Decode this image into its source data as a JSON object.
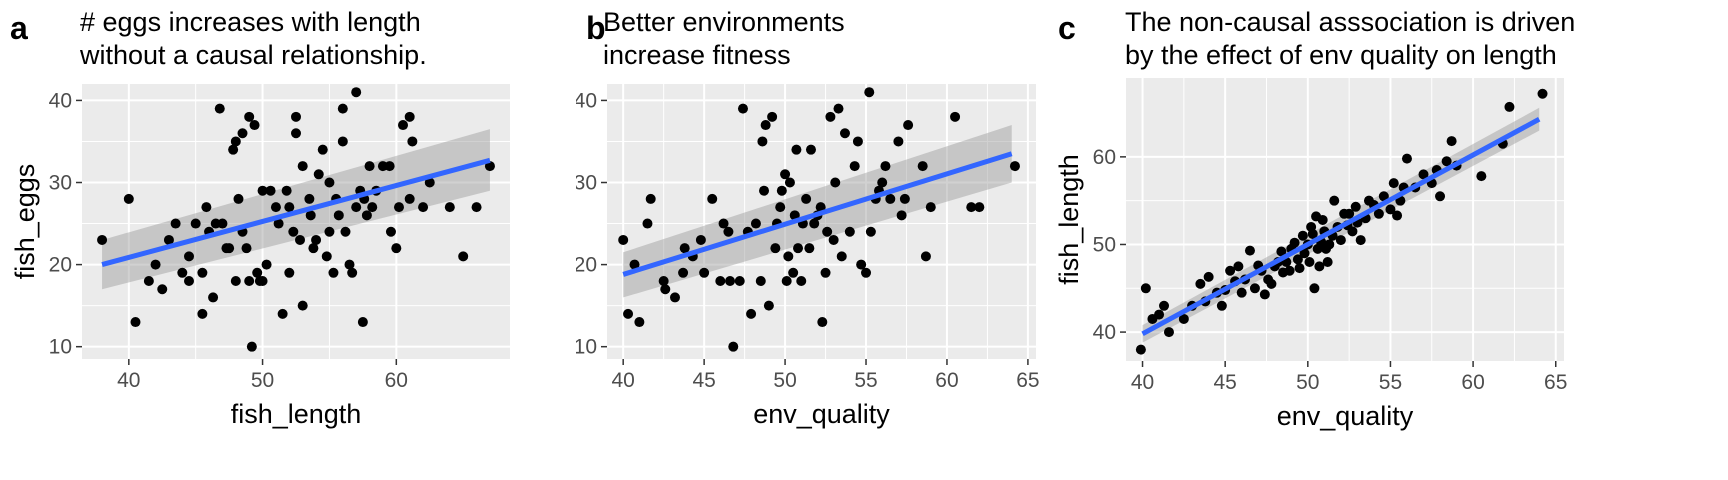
{
  "chart_data": [
    {
      "type": "scatter",
      "panel_label": "a",
      "title_lines": [
        "# eggs increases with length",
        "without a causal relationship."
      ],
      "xlabel": "fish_length",
      "ylabel": "fish_eggs",
      "xlim": [
        36.5,
        68.5
      ],
      "ylim": [
        8.5,
        42
      ],
      "xticks": [
        40,
        50,
        60
      ],
      "yticks": [
        10,
        20,
        30,
        40
      ],
      "grid": true,
      "fit": {
        "x": [
          38,
          67
        ],
        "y": [
          20,
          32.7
        ],
        "ci_lower": [
          17,
          29
        ],
        "ci_upper": [
          23,
          36.5
        ]
      },
      "colors": {
        "panel_bg": "#ebebeb",
        "points": "#000000",
        "fit_line": "#3366ff",
        "ribbon": "#999999"
      },
      "points": [
        [
          38,
          23
        ],
        [
          40,
          28
        ],
        [
          40.5,
          13
        ],
        [
          41.5,
          18
        ],
        [
          42,
          20
        ],
        [
          42.5,
          17
        ],
        [
          43,
          23
        ],
        [
          43.5,
          25
        ],
        [
          44,
          19
        ],
        [
          44.5,
          21
        ],
        [
          44.5,
          18
        ],
        [
          45,
          25
        ],
        [
          45.5,
          19
        ],
        [
          45.5,
          14
        ],
        [
          45.8,
          27
        ],
        [
          46,
          24
        ],
        [
          46.3,
          16
        ],
        [
          46.5,
          25
        ],
        [
          46.8,
          39
        ],
        [
          47,
          25
        ],
        [
          47.3,
          22
        ],
        [
          47.5,
          22
        ],
        [
          47.8,
          34
        ],
        [
          48,
          35
        ],
        [
          48,
          18
        ],
        [
          48.2,
          28
        ],
        [
          48.5,
          36
        ],
        [
          48.5,
          24
        ],
        [
          48.8,
          22
        ],
        [
          49,
          38
        ],
        [
          49,
          18
        ],
        [
          49.2,
          10
        ],
        [
          49.4,
          37
        ],
        [
          49.6,
          19
        ],
        [
          49.8,
          18
        ],
        [
          50,
          29
        ],
        [
          50,
          18
        ],
        [
          50.3,
          20
        ],
        [
          50.6,
          29
        ],
        [
          51,
          27
        ],
        [
          51.2,
          25
        ],
        [
          51.5,
          14
        ],
        [
          51.8,
          29
        ],
        [
          52,
          19
        ],
        [
          52,
          27
        ],
        [
          52.3,
          24
        ],
        [
          52.5,
          38
        ],
        [
          52.5,
          36
        ],
        [
          52.8,
          23
        ],
        [
          53,
          32
        ],
        [
          53,
          15
        ],
        [
          53.5,
          28
        ],
        [
          53.6,
          26
        ],
        [
          53.8,
          22
        ],
        [
          54,
          23
        ],
        [
          54.2,
          31
        ],
        [
          54.5,
          34
        ],
        [
          54.8,
          21
        ],
        [
          55,
          30
        ],
        [
          55,
          24
        ],
        [
          55.3,
          19
        ],
        [
          55.5,
          28
        ],
        [
          55.7,
          26
        ],
        [
          56,
          39
        ],
        [
          56,
          35
        ],
        [
          56.2,
          24
        ],
        [
          56.5,
          20
        ],
        [
          56.7,
          19
        ],
        [
          57,
          41
        ],
        [
          57,
          27
        ],
        [
          57.3,
          29
        ],
        [
          57.5,
          13
        ],
        [
          57.6,
          28
        ],
        [
          57.8,
          26
        ],
        [
          58,
          32
        ],
        [
          58.2,
          27
        ],
        [
          58.5,
          29
        ],
        [
          59,
          32
        ],
        [
          59.5,
          32
        ],
        [
          59.6,
          24
        ],
        [
          60,
          22
        ],
        [
          60.2,
          27
        ],
        [
          60.5,
          37
        ],
        [
          61,
          38
        ],
        [
          61.2,
          35
        ],
        [
          61,
          28
        ],
        [
          62,
          27
        ],
        [
          62.5,
          30
        ],
        [
          64,
          27
        ],
        [
          65,
          21
        ],
        [
          66,
          27
        ],
        [
          67,
          32
        ]
      ]
    },
    {
      "type": "scatter",
      "panel_label": "b",
      "title_lines": [
        "Better environments",
        "increase fitness"
      ],
      "xlabel": "env_quality",
      "ylabel": "fish_eggs",
      "xlim": [
        39,
        65.5
      ],
      "ylim": [
        8.5,
        42
      ],
      "xticks": [
        40,
        45,
        50,
        55,
        60,
        65
      ],
      "yticks": [
        10,
        20,
        30,
        40
      ],
      "grid": true,
      "fit": {
        "x": [
          40,
          64
        ],
        "y": [
          18.8,
          33.5
        ],
        "ci_lower": [
          16,
          30
        ],
        "ci_upper": [
          21.5,
          37
        ]
      },
      "colors": {
        "panel_bg": "#ebebeb",
        "points": "#000000",
        "fit_line": "#3366ff",
        "ribbon": "#999999"
      },
      "points": [
        [
          40,
          23
        ],
        [
          40.3,
          14
        ],
        [
          40.7,
          20
        ],
        [
          41,
          13
        ],
        [
          41.5,
          25
        ],
        [
          41.7,
          28
        ],
        [
          42.5,
          18
        ],
        [
          42.6,
          17
        ],
        [
          43.2,
          16
        ],
        [
          43.7,
          19
        ],
        [
          43.8,
          22
        ],
        [
          44.3,
          21
        ],
        [
          44.8,
          23
        ],
        [
          45,
          19
        ],
        [
          45.5,
          28
        ],
        [
          46,
          18
        ],
        [
          46.2,
          25
        ],
        [
          46.5,
          24
        ],
        [
          46.6,
          18
        ],
        [
          46.8,
          10
        ],
        [
          47.2,
          18
        ],
        [
          47.4,
          39
        ],
        [
          47.7,
          24
        ],
        [
          47.9,
          14
        ],
        [
          48.2,
          25
        ],
        [
          48.5,
          18
        ],
        [
          48.6,
          35
        ],
        [
          48.7,
          29
        ],
        [
          48.8,
          37
        ],
        [
          49,
          15
        ],
        [
          49.2,
          38
        ],
        [
          49.4,
          22
        ],
        [
          49.5,
          25
        ],
        [
          49.7,
          27
        ],
        [
          49.8,
          29
        ],
        [
          50,
          31
        ],
        [
          50.1,
          18
        ],
        [
          50.2,
          21
        ],
        [
          50.3,
          30
        ],
        [
          50.5,
          19
        ],
        [
          50.6,
          26
        ],
        [
          50.7,
          34
        ],
        [
          50.8,
          22
        ],
        [
          51,
          18
        ],
        [
          51.1,
          25
        ],
        [
          51.3,
          28
        ],
        [
          51.5,
          22
        ],
        [
          51.6,
          34
        ],
        [
          51.8,
          25
        ],
        [
          52,
          26
        ],
        [
          52.2,
          27
        ],
        [
          52.3,
          13
        ],
        [
          52.5,
          19
        ],
        [
          52.6,
          24
        ],
        [
          52.8,
          38
        ],
        [
          53,
          23
        ],
        [
          53.1,
          30
        ],
        [
          53.3,
          39
        ],
        [
          53.5,
          21
        ],
        [
          53.7,
          36
        ],
        [
          54,
          24
        ],
        [
          54.3,
          32
        ],
        [
          54.5,
          35
        ],
        [
          54.7,
          20
        ],
        [
          55,
          19
        ],
        [
          55.2,
          41
        ],
        [
          55.3,
          24
        ],
        [
          55.6,
          28
        ],
        [
          55.8,
          29
        ],
        [
          56,
          30
        ],
        [
          56.2,
          32
        ],
        [
          56.5,
          28
        ],
        [
          57,
          35
        ],
        [
          57.2,
          26
        ],
        [
          57.4,
          28
        ],
        [
          57.6,
          37
        ],
        [
          58.5,
          32
        ],
        [
          58.7,
          21
        ],
        [
          59,
          27
        ],
        [
          60.5,
          38
        ],
        [
          61.5,
          27
        ],
        [
          62,
          27
        ],
        [
          64.2,
          32
        ]
      ]
    },
    {
      "type": "scatter",
      "panel_label": "c",
      "title_lines": [
        "The non-causal asssociation is driven",
        "by the effect of env quality on length"
      ],
      "xlabel": "env_quality",
      "ylabel": "fish_length",
      "xlim": [
        39,
        65.5
      ],
      "ylim": [
        36.7,
        69
      ],
      "xticks": [
        40,
        45,
        50,
        55,
        60,
        65
      ],
      "yticks": [
        40,
        50,
        60
      ],
      "grid": true,
      "fit": {
        "x": [
          40,
          64
        ],
        "y": [
          39.8,
          64.3
        ],
        "ci_lower": [
          38.8,
          63.0
        ],
        "ci_upper": [
          40.8,
          65.6
        ]
      },
      "colors": {
        "panel_bg": "#ebebeb",
        "points": "#000000",
        "fit_line": "#3366ff",
        "ribbon": "#999999"
      },
      "points": [
        [
          39.9,
          38
        ],
        [
          40.2,
          45
        ],
        [
          40.6,
          41.5
        ],
        [
          41,
          42
        ],
        [
          41.3,
          43
        ],
        [
          41.6,
          40
        ],
        [
          42.5,
          41.5
        ],
        [
          43,
          43
        ],
        [
          43.5,
          45.5
        ],
        [
          43.8,
          43.5
        ],
        [
          44,
          46.3
        ],
        [
          44.5,
          44.5
        ],
        [
          44.8,
          43
        ],
        [
          45,
          44.8
        ],
        [
          45.3,
          47
        ],
        [
          45.6,
          45.8
        ],
        [
          45.8,
          47.5
        ],
        [
          46,
          44.5
        ],
        [
          46.2,
          46
        ],
        [
          46.5,
          49.3
        ],
        [
          46.8,
          45
        ],
        [
          47,
          47.6
        ],
        [
          47.2,
          47
        ],
        [
          47.4,
          44.3
        ],
        [
          47.6,
          46
        ],
        [
          47.8,
          45.5
        ],
        [
          48,
          47.5
        ],
        [
          48.2,
          48
        ],
        [
          48.4,
          49.2
        ],
        [
          48.5,
          46.8
        ],
        [
          48.7,
          48
        ],
        [
          48.9,
          47
        ],
        [
          49,
          49.5
        ],
        [
          49.2,
          50.2
        ],
        [
          49.4,
          48.3
        ],
        [
          49.5,
          47.3
        ],
        [
          49.7,
          51
        ],
        [
          49.8,
          49
        ],
        [
          50,
          50
        ],
        [
          50.1,
          48
        ],
        [
          50.2,
          52
        ],
        [
          50.3,
          51.2
        ],
        [
          50.4,
          45
        ],
        [
          50.5,
          53.2
        ],
        [
          50.6,
          49.5
        ],
        [
          50.7,
          47.5
        ],
        [
          50.8,
          50.3
        ],
        [
          50.9,
          52.8
        ],
        [
          51,
          51.5
        ],
        [
          51.1,
          49.5
        ],
        [
          51.2,
          48
        ],
        [
          51.3,
          50
        ],
        [
          51.5,
          51
        ],
        [
          51.6,
          55
        ],
        [
          51.8,
          52
        ],
        [
          52,
          50.5
        ],
        [
          52.2,
          53.5
        ],
        [
          52.4,
          52.2
        ],
        [
          52.5,
          53.5
        ],
        [
          52.7,
          51.5
        ],
        [
          52.9,
          54.3
        ],
        [
          53,
          52.5
        ],
        [
          53.2,
          50.5
        ],
        [
          53.5,
          53
        ],
        [
          53.7,
          55
        ],
        [
          54,
          54.5
        ],
        [
          54.3,
          53.5
        ],
        [
          54.6,
          55.5
        ],
        [
          55,
          54
        ],
        [
          55.2,
          57
        ],
        [
          55.4,
          53.3
        ],
        [
          55.6,
          55
        ],
        [
          55.8,
          56.5
        ],
        [
          56,
          59.8
        ],
        [
          56.5,
          56.5
        ],
        [
          57,
          58
        ],
        [
          57.5,
          57
        ],
        [
          57.8,
          58.5
        ],
        [
          58,
          55.5
        ],
        [
          58.4,
          59.5
        ],
        [
          58.7,
          61.8
        ],
        [
          59,
          59
        ],
        [
          60.5,
          57.8
        ],
        [
          61.8,
          61.5
        ],
        [
          62.2,
          65.7
        ],
        [
          64.2,
          67.2
        ]
      ]
    }
  ]
}
